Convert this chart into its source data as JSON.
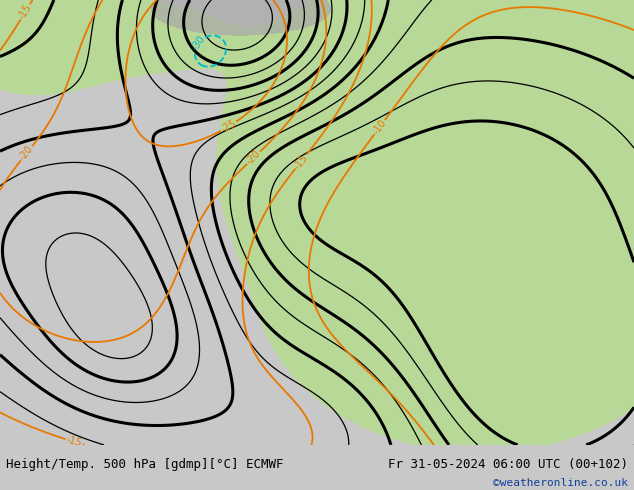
{
  "title_left": "Height/Temp. 500 hPa [gdmp][°C] ECMWF",
  "title_right": "Fr 31-05-2024 06:00 UTC (00+102)",
  "watermark": "©weatheronline.co.uk",
  "bg_color": "#c8c8c8",
  "ocean_color": "#c8c8c8",
  "land_gray_color": "#b8b8b8",
  "light_green": "#b8d898",
  "contour_black": "#000000",
  "contour_orange": "#e87800",
  "contour_cyan": "#00b8d0",
  "bottom_bar_color": "#ffffff",
  "watermark_color": "#1040a0",
  "font_size_title": 9,
  "font_size_watermark": 8
}
